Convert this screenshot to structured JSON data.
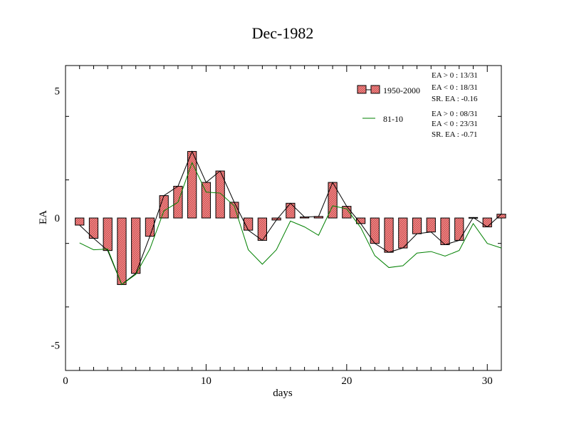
{
  "chart_data": {
    "type": "bar",
    "title": "Dec-1982",
    "xlabel": "days",
    "ylabel": "EA",
    "xlim": [
      0,
      31
    ],
    "ylim": [
      -6,
      6
    ],
    "x_ticks": [
      0,
      10,
      20,
      30
    ],
    "y_ticks": [
      -5,
      0,
      5
    ],
    "x_tick_labels": [
      "0",
      "10",
      "20",
      "30"
    ],
    "y_tick_labels": [
      "-5",
      "0",
      "5"
    ],
    "grid": false,
    "legend_position": "top-right",
    "x": [
      1,
      2,
      3,
      4,
      5,
      6,
      7,
      8,
      9,
      10,
      11,
      12,
      13,
      14,
      15,
      16,
      17,
      18,
      19,
      20,
      21,
      22,
      23,
      24,
      25,
      26,
      27,
      28,
      29,
      30,
      31
    ],
    "series": [
      {
        "name": "1950-2000",
        "kind": "bar",
        "color": "#f08080",
        "values": [
          -0.28,
          -0.8,
          -1.28,
          -2.62,
          -2.18,
          -0.72,
          0.88,
          1.25,
          2.62,
          1.4,
          1.85,
          0.62,
          -0.48,
          -0.88,
          -0.08,
          0.58,
          0.04,
          0.06,
          1.4,
          0.46,
          -0.22,
          -1.0,
          -1.35,
          -1.18,
          -0.62,
          -0.55,
          -1.05,
          -0.88,
          0.02,
          -0.35,
          0.15
        ]
      },
      {
        "name": "81-10",
        "kind": "line",
        "color": "#008000",
        "values": [
          -0.98,
          -1.25,
          -1.22,
          -2.62,
          -2.22,
          -1.22,
          0.28,
          0.62,
          2.18,
          1.02,
          0.98,
          0.48,
          -1.25,
          -1.82,
          -1.25,
          -0.12,
          -0.35,
          -0.68,
          0.48,
          0.36,
          -0.38,
          -1.48,
          -1.95,
          -1.88,
          -1.38,
          -1.32,
          -1.5,
          -1.28,
          -0.22,
          -1.0,
          -1.18
        ]
      }
    ],
    "annotations": [
      "EA > 0 : 13/31",
      "EA < 0 : 18/31",
      "SR. EA : -0.16",
      "EA > 0 : 08/31",
      "EA < 0 : 23/31",
      "SR. EA : -0.71"
    ],
    "colors": {
      "bar_fill": "#f08080",
      "bar_stroke": "#000000",
      "line_green": "#008000",
      "connector": "#000000"
    }
  }
}
